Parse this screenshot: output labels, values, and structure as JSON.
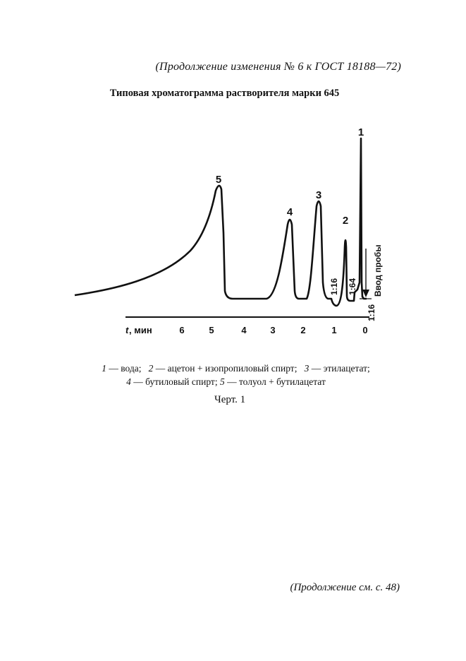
{
  "header_note": "(Продолжение изменения № 6 к ГОСТ 18188—72)",
  "title": "Типовая хроматограмма растворителя марки 645",
  "chart_data": {
    "type": "line",
    "xlabel_symbol": "t",
    "xlabel_unit": ", мин",
    "x_ticks": [
      "6",
      "5",
      "4",
      "3",
      "2",
      "1",
      "0"
    ],
    "peaks": [
      {
        "label": "1",
        "retention_min": 0.1
      },
      {
        "label": "2",
        "retention_min": 0.65
      },
      {
        "label": "3",
        "retention_min": 1.5
      },
      {
        "label": "4",
        "retention_min": 2.45
      },
      {
        "label": "5",
        "retention_min": 4.8
      }
    ],
    "attenuation_labels": [
      "1:16",
      "1:64",
      "1:16"
    ],
    "injection_label": "Ввод пробы"
  },
  "legend": {
    "items": [
      {
        "num": "1",
        "text": " — вода;"
      },
      {
        "num": "2",
        "text": " — ацетон + изопропиловый спирт;"
      },
      {
        "num": "3",
        "text": " — этилацетат;"
      },
      {
        "num": "4",
        "text": " — бутиловый спирт;"
      },
      {
        "num": "5",
        "text": " — толуол + бутилацетат"
      }
    ]
  },
  "figure_caption": "Черт. 1",
  "footer_note": "(Продолжение см. с. 48)"
}
